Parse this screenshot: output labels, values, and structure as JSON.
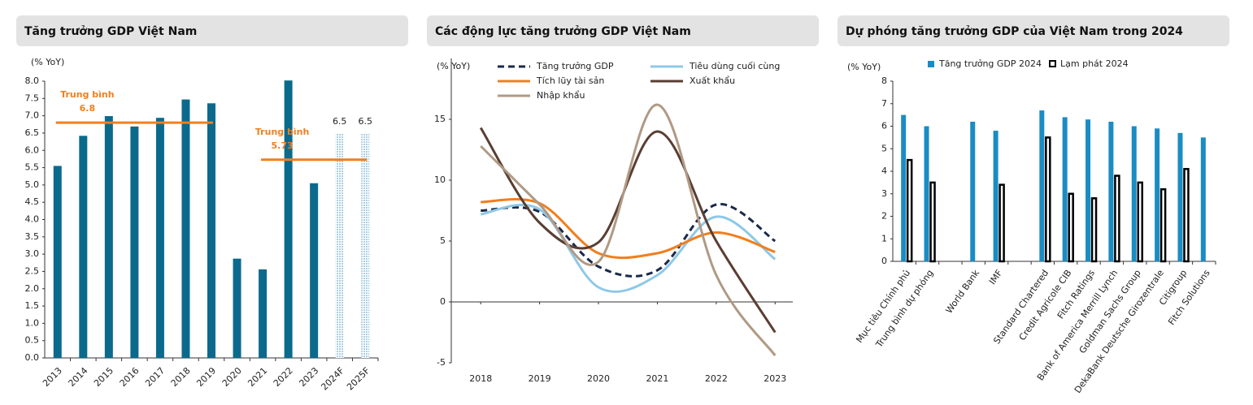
{
  "chart_data": [
    {
      "type": "bar",
      "title": "Tăng trưởng GDP Việt Nam",
      "y_label": "(% YoY)",
      "categories": [
        "2013",
        "2014",
        "2015",
        "2016",
        "2017",
        "2018",
        "2019",
        "2020",
        "2021",
        "2022",
        "2023",
        "2024F",
        "2025F"
      ],
      "values": [
        5.55,
        6.42,
        6.99,
        6.69,
        6.94,
        7.47,
        7.36,
        2.87,
        2.56,
        8.02,
        5.05,
        6.5,
        6.5
      ],
      "value_labels": [
        null,
        null,
        null,
        null,
        null,
        null,
        null,
        null,
        null,
        null,
        null,
        "6.5",
        "6.5"
      ],
      "colors": [
        "#0b6a8c",
        "#0b6a8c",
        "#0b6a8c",
        "#0b6a8c",
        "#0b6a8c",
        "#0b6a8c",
        "#0b6a8c",
        "#0b6a8c",
        "#0b6a8c",
        "#0b6a8c",
        "#0b6a8c",
        "#a9cfe3",
        "#a9cfe3"
      ],
      "ylim": [
        0,
        8
      ],
      "yticks": [
        {
          "value": 0,
          "label": "0.0"
        },
        0.5,
        {
          "value": 1,
          "label": "1.0"
        },
        1.5,
        {
          "value": 2,
          "label": "2.0"
        },
        2.5,
        {
          "value": 3,
          "label": "3.0"
        },
        3.5,
        {
          "value": 4,
          "label": "4.0"
        },
        4.5,
        {
          "value": 5,
          "label": "5.0"
        },
        5.5,
        {
          "value": 6,
          "label": "6.0"
        },
        6.5,
        {
          "value": 7,
          "label": "7.0"
        },
        7.5,
        {
          "value": 8,
          "label": "8.0"
        }
      ],
      "reference_lines": [
        {
          "label": "Trung bình",
          "value": 6.8,
          "from": "2013",
          "to": "2019",
          "color": "#f07f1e"
        },
        {
          "label": "Trung bình",
          "value": 5.73,
          "from": "2021",
          "to": "2025F",
          "color": "#f07f1e"
        }
      ]
    },
    {
      "type": "line",
      "title": "Các động lực tăng trưởng GDP Việt Nam",
      "y_label": "(% YoY)",
      "x": [
        2018,
        2019,
        2020,
        2021,
        2022,
        2023
      ],
      "series": [
        {
          "name": "Tăng trưởng GDP",
          "color": "#1b2a4a",
          "dash": "dashed",
          "values": [
            7.5,
            7.4,
            2.9,
            2.6,
            8.0,
            5.0
          ]
        },
        {
          "name": "Tiêu dùng cuối cùng",
          "color": "#8ec8e8",
          "values": [
            7.2,
            7.6,
            1.2,
            2.2,
            7.0,
            3.5
          ]
        },
        {
          "name": "Tích lũy tài sản",
          "color": "#f07f1e",
          "values": [
            8.2,
            8.1,
            4.0,
            4.0,
            5.7,
            4.1
          ]
        },
        {
          "name": "Xuất khẩu",
          "color": "#5a3e32",
          "values": [
            14.3,
            6.5,
            4.9,
            14.0,
            5.0,
            -2.5
          ]
        },
        {
          "name": "Nhập khẩu",
          "color": "#b09a84",
          "values": [
            12.8,
            8.0,
            3.3,
            16.2,
            2.2,
            -4.4
          ]
        }
      ],
      "xlim": [
        2017.5,
        2023.3
      ],
      "xticks": [
        2018,
        2019,
        2020,
        2021,
        2022,
        2023
      ],
      "ylim": [
        -5,
        20
      ],
      "yticks": [
        -5,
        0,
        5,
        10,
        15
      ]
    },
    {
      "type": "grouped_bar",
      "title": "Dự phóng tăng trưởng GDP của Việt Nam trong 2024",
      "y_label": "(% YoY)",
      "categories": [
        "Mục tiêu Chính phủ",
        "Trung bình dự phóng",
        null,
        "World Bank",
        "IMF",
        null,
        "Standard Chartered",
        "Credit Agricole CIB",
        "Fitch Ratings",
        "Bank of America Merrill Lynch",
        "Goldman Sachs Group",
        "DekaBank Deutsche Girozentrale",
        "Citigroup",
        "Fitch Solutions"
      ],
      "series": [
        {
          "name": "Tăng trưởng GDP 2024",
          "color": "#1a8cc4",
          "values": [
            6.5,
            6.0,
            null,
            6.2,
            5.8,
            null,
            6.7,
            6.4,
            6.3,
            6.2,
            6.0,
            5.9,
            5.7,
            5.5
          ]
        },
        {
          "name": "Lạm phát 2024",
          "color": "#000000",
          "values": [
            4.5,
            3.5,
            null,
            null,
            3.4,
            null,
            5.5,
            3.0,
            2.8,
            3.8,
            3.5,
            3.2,
            4.1,
            null
          ]
        }
      ],
      "ylim": [
        0,
        8
      ],
      "yticks": [
        0,
        1,
        2,
        3,
        4,
        5,
        6,
        7,
        8
      ]
    }
  ]
}
